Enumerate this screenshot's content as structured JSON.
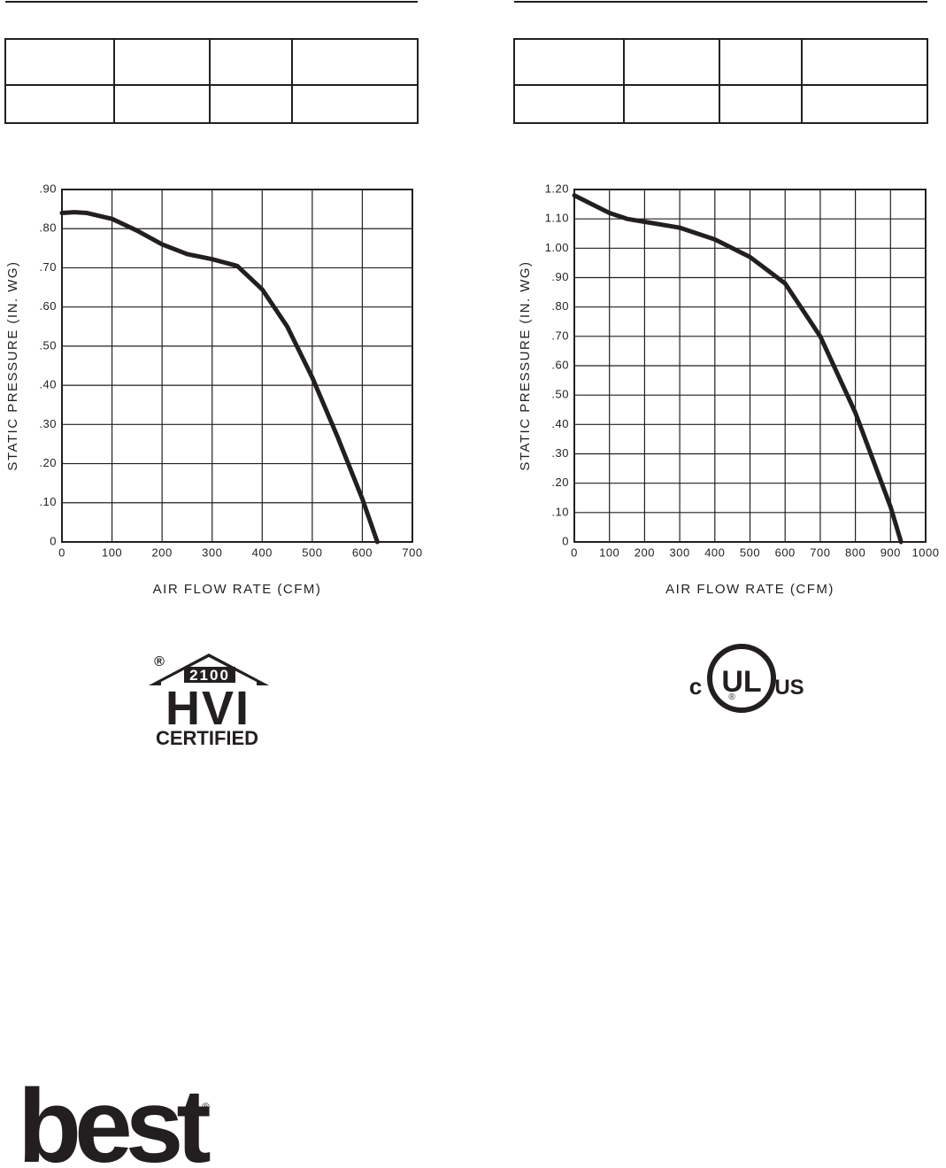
{
  "chart_data": [
    {
      "type": "line",
      "xlabel": "AIR FLOW RATE (CFM)",
      "ylabel": "STATIC PRESSURE (IN. WG)",
      "x": [
        0,
        25,
        50,
        100,
        150,
        200,
        250,
        300,
        350,
        400,
        450,
        500,
        550,
        600,
        630
      ],
      "values": [
        0.84,
        0.842,
        0.84,
        0.825,
        0.795,
        0.76,
        0.735,
        0.722,
        0.705,
        0.645,
        0.55,
        0.42,
        0.27,
        0.11,
        0
      ],
      "color": "#231f20",
      "xlim": [
        0,
        700
      ],
      "xticks": [
        0,
        100,
        200,
        300,
        400,
        500,
        600,
        700
      ],
      "ylim": [
        0,
        0.9
      ],
      "yticks": [
        0,
        {
          "value": 0.1,
          "label": ".10"
        },
        {
          "value": 0.2,
          "label": ".20"
        },
        {
          "value": 0.3,
          "label": ".30"
        },
        {
          "value": 0.4,
          "label": ".40"
        },
        {
          "value": 0.5,
          "label": ".50"
        },
        {
          "value": 0.6,
          "label": ".60"
        },
        {
          "value": 0.7,
          "label": ".70"
        },
        {
          "value": 0.8,
          "label": ".80"
        },
        {
          "value": 0.9,
          "label": ".90"
        }
      ],
      "grid": true
    },
    {
      "type": "line",
      "xlabel": "AIR FLOW RATE (CFM)",
      "ylabel": "STATIC PRESSURE (IN. WG)",
      "x": [
        0,
        50,
        100,
        150,
        200,
        300,
        400,
        500,
        600,
        700,
        800,
        900,
        930
      ],
      "values": [
        1.18,
        1.15,
        1.12,
        1.1,
        1.09,
        1.07,
        1.03,
        0.97,
        0.88,
        0.7,
        0.44,
        0.12,
        0
      ],
      "color": "#231f20",
      "xlim": [
        0,
        1000
      ],
      "xticks": [
        0,
        100,
        200,
        300,
        400,
        500,
        600,
        700,
        800,
        900,
        1000
      ],
      "ylim": [
        0,
        1.2
      ],
      "yticks": [
        0,
        {
          "value": 0.1,
          "label": ".10"
        },
        {
          "value": 0.2,
          "label": ".20"
        },
        {
          "value": 0.3,
          "label": ".30"
        },
        {
          "value": 0.4,
          "label": ".40"
        },
        {
          "value": 0.5,
          "label": ".50"
        },
        {
          "value": 0.6,
          "label": ".60"
        },
        {
          "value": 0.7,
          "label": ".70"
        },
        {
          "value": 0.8,
          "label": ".80"
        },
        {
          "value": 0.9,
          "label": ".90"
        },
        {
          "value": 1.0,
          "label": "1.00"
        },
        {
          "value": 1.1,
          "label": "1.10"
        },
        {
          "value": 1.2,
          "label": "1.20"
        }
      ],
      "grid": true
    }
  ],
  "logos": {
    "hvi": {
      "registered": "®",
      "number": "2100",
      "name": "HVI",
      "certified": "CERTIFIED"
    },
    "ul": {
      "left": "c",
      "mark": "UL",
      "registered": "®",
      "right": "US"
    },
    "brand": {
      "name": "best",
      "registered": "®"
    }
  }
}
